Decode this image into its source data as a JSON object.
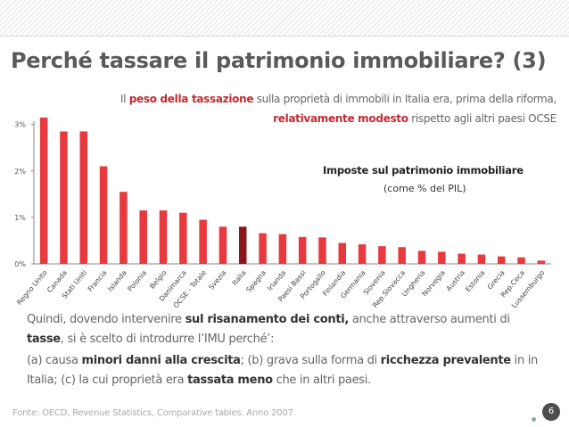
{
  "title": "Perché tassare il patrimonio immobiliare? (3)",
  "subtitle": {
    "line1_pre": "Il ",
    "line1_bold": "peso della tassazione",
    "line1_post": " sulla proprietà di immobili in Italia era, prima della riforma,",
    "line2_bold": "relativamente modesto",
    "line2_post": " rispetto agli altri paesi OCSE"
  },
  "legend": {
    "title": "Imposte sul patrimonio immobiliare",
    "unit": "(come % del PIL)"
  },
  "colors": {
    "bar": "#e8393f",
    "highlight": "#8b1518",
    "axis": "#888888"
  },
  "chart_data": {
    "type": "bar",
    "categories": [
      "Regno Unito",
      "Canada",
      "Stati Uniti",
      "Francia",
      "Islanda",
      "Polonia",
      "Belgio",
      "Danimarca",
      "OCSE - Totale",
      "Svezia",
      "Italia",
      "Spagna",
      "Irlanda",
      "Paesi Bassi",
      "Portogallo",
      "Finlandia",
      "Germania",
      "Slovenia",
      "Rep.Slovacca",
      "Ungheria",
      "Norvegia",
      "Austria",
      "Estonia",
      "Grecia",
      "Rep.Ceca",
      "Lussemburgo"
    ],
    "values": [
      3.15,
      2.85,
      2.85,
      2.1,
      1.55,
      1.15,
      1.15,
      1.1,
      0.95,
      0.8,
      0.8,
      0.66,
      0.64,
      0.58,
      0.57,
      0.45,
      0.42,
      0.38,
      0.36,
      0.28,
      0.26,
      0.22,
      0.2,
      0.16,
      0.14,
      0.07
    ],
    "highlight": "Italia",
    "yticks": [
      "0%",
      "1%",
      "2%",
      "3%"
    ],
    "ylim": [
      0,
      3.3
    ],
    "grid": false
  },
  "body": {
    "l1_pre": "Quindi, dovendo intervenire ",
    "l1_bold": "sul risanamento dei conti,",
    "l1_post": " anche attraverso aumenti di",
    "l2_bold": "tasse",
    "l2_post": ", si è scelto di introdurre l’IMU perché’:",
    "l3_pre": " (a) causa ",
    "l3_bold1": "minori danni alla crescita",
    "l3_mid": "; (b) grava sulla forma di ",
    "l3_bold2": "ricchezza prevalente",
    "l3_post": " in in",
    "l4_pre": "Italia; (c) la cui proprietà era ",
    "l4_bold": "tassata meno",
    "l4_post": " che in altri paesi."
  },
  "source": "Fonte: OECD, Revenue Statistics, Comparative tables. Anno 2007",
  "page_number": "6"
}
